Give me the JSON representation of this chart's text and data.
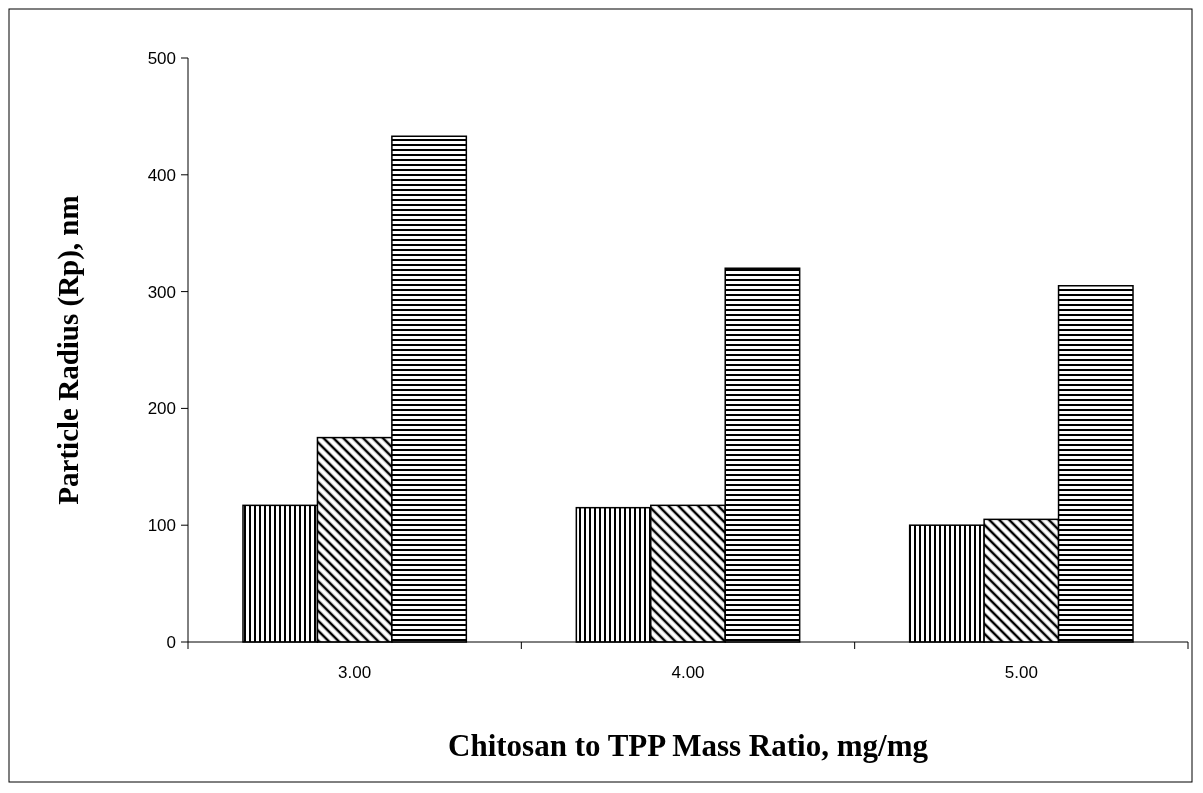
{
  "chart_data": {
    "type": "bar",
    "xlabel": "Chitosan to TPP Mass Ratio, mg/mg",
    "ylabel": "Particle Radius (Rp), nm",
    "categories": [
      "3.00",
      "4.00",
      "5.00"
    ],
    "series": [
      {
        "color": "#000000",
        "values": [
          117,
          115,
          100
        ]
      },
      {
        "color": "#000000",
        "values": [
          175,
          117,
          105
        ]
      },
      {
        "color": "#000000",
        "values": [
          433,
          320,
          305
        ]
      }
    ],
    "ylim": [
      0,
      500
    ],
    "yticks": [
      0,
      100,
      200,
      300,
      400,
      500
    ],
    "grid": false
  }
}
